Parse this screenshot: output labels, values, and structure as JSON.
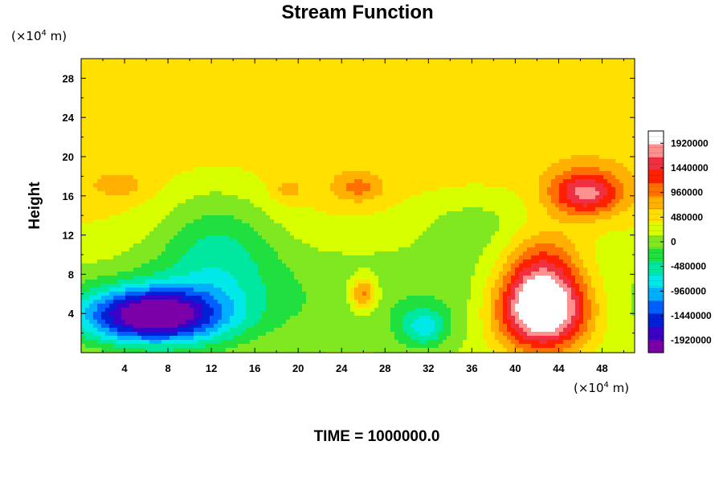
{
  "chart_data": {
    "type": "heatmap",
    "title": "Stream Function",
    "ylabel": "Height",
    "x_unit": {
      "prefix": "(×10",
      "exp": "4",
      "suffix": " m)"
    },
    "y_unit": {
      "prefix": "(×10",
      "exp": "4",
      "suffix": " m)"
    },
    "xlim": [
      0,
      51
    ],
    "ylim": [
      0,
      30
    ],
    "x_ticks": [
      4,
      8,
      12,
      16,
      20,
      24,
      28,
      32,
      36,
      40,
      44,
      48
    ],
    "y_ticks": [
      4,
      8,
      12,
      16,
      20,
      24,
      28
    ],
    "x_tick_labels": [
      "4",
      "8",
      "12",
      "16",
      "20",
      "24",
      "28",
      "32",
      "36",
      "40",
      "44",
      "48"
    ],
    "y_tick_labels": [
      "4",
      "8",
      "12",
      "16",
      "20",
      "24",
      "28"
    ],
    "colorbar": {
      "min": -2160000,
      "max": 2160000,
      "labels": [
        "1920000",
        "1440000",
        "960000",
        "480000",
        "0",
        "-480000",
        "-960000",
        "-1440000",
        "-1920000"
      ],
      "label_values": [
        1920000,
        1440000,
        960000,
        480000,
        0,
        -480000,
        -960000,
        -1440000,
        -1920000
      ],
      "colors": [
        "#7a00a8",
        "#3c00c8",
        "#0020d8",
        "#0060ff",
        "#00b0ff",
        "#00e8e8",
        "#00e8a0",
        "#20e040",
        "#80e820",
        "#d8ff00",
        "#ffe000",
        "#ffb000",
        "#ff7000",
        "#ff2000",
        "#f03040",
        "#ff9090",
        "#ffffff"
      ]
    },
    "background_value": 560000,
    "features": [
      {
        "name": "negative low, lower left",
        "x": 6.5,
        "y": 3.8,
        "sx": 4.5,
        "sy": 2.0,
        "value": -2400000
      },
      {
        "name": "weak negative, mid left",
        "x": 12.5,
        "y": 10.5,
        "sx": 4.0,
        "sy": 5.0,
        "value": -700000
      },
      {
        "name": "negative near x=32",
        "x": 31.5,
        "y": 2.6,
        "sx": 1.6,
        "sy": 1.5,
        "value": -800000
      },
      {
        "name": "green low band",
        "x": 25.0,
        "y": 6.0,
        "sx": 30.0,
        "sy": 4.5,
        "value": -450000
      },
      {
        "name": "green band x=36",
        "x": 36.5,
        "y": 13.5,
        "sx": 4.5,
        "sy": 2.5,
        "value": -350000
      },
      {
        "name": "positive high, lower right",
        "x": 42.5,
        "y": 4.2,
        "sx": 3.0,
        "sy": 2.8,
        "value": 2300000
      },
      {
        "name": "positive extension above",
        "x": 42.5,
        "y": 8.5,
        "sx": 2.5,
        "sy": 3.0,
        "value": 900000
      },
      {
        "name": "positive upper right",
        "x": 46.5,
        "y": 16.3,
        "sx": 2.3,
        "sy": 1.6,
        "value": 1300000
      },
      {
        "name": "positive near x=26",
        "x": 26.0,
        "y": 6.0,
        "sx": 0.9,
        "sy": 1.2,
        "value": 1000000
      },
      {
        "name": "positive near x=26 upper",
        "x": 25.5,
        "y": 16.8,
        "sx": 1.6,
        "sy": 1.0,
        "value": 500000
      },
      {
        "name": "positive near x=19",
        "x": 19.0,
        "y": 16.5,
        "sx": 1.0,
        "sy": 0.8,
        "value": 350000
      },
      {
        "name": "positive near x=3",
        "x": 3.5,
        "y": 17.0,
        "sx": 1.8,
        "sy": 0.9,
        "value": 300000
      }
    ],
    "time_label": "TIME = 1000000.0"
  }
}
